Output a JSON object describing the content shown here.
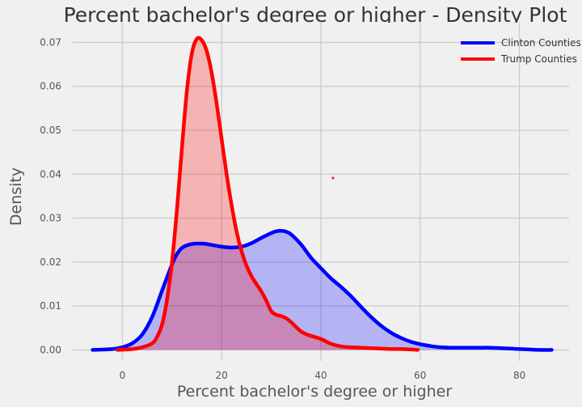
{
  "chart_data": {
    "type": "area",
    "title": "Percent bachelor's degree or higher - Density Plot",
    "xlabel": "Percent bachelor's degree or higher",
    "ylabel": "Density",
    "xlim": [
      -10,
      90
    ],
    "ylim": [
      -0.0025,
      0.0745
    ],
    "x_ticks": [
      0,
      20,
      40,
      60,
      80
    ],
    "y_ticks": [
      0.0,
      0.01,
      0.02,
      0.03,
      0.04,
      0.05,
      0.06,
      0.07
    ],
    "x_tick_labels": [
      "0",
      "20",
      "40",
      "60",
      "80"
    ],
    "y_tick_labels": [
      "0.00",
      "0.01",
      "0.02",
      "0.03",
      "0.04",
      "0.05",
      "0.06",
      "0.07"
    ],
    "grid": true,
    "legend_position": "top-right",
    "series": [
      {
        "name": "Clinton Counties",
        "color": "#0000ff",
        "fill": "rgba(0,0,255,0.25)",
        "x": [
          -6,
          -2,
          0,
          2,
          4,
          6,
          8,
          10,
          11,
          12,
          13,
          14,
          15,
          16,
          17,
          18,
          20,
          22,
          24,
          26,
          28,
          30,
          31,
          32,
          33,
          34,
          36,
          38,
          40,
          42,
          44,
          46,
          48,
          50,
          52,
          54,
          56,
          58,
          60,
          62,
          64,
          66,
          68,
          70,
          72,
          74,
          76,
          78,
          80,
          82,
          84,
          86.5
        ],
        "y": [
          0.0,
          0.0002,
          0.0006,
          0.0015,
          0.0035,
          0.0075,
          0.0135,
          0.0195,
          0.0218,
          0.0232,
          0.0238,
          0.0241,
          0.0242,
          0.0242,
          0.0241,
          0.0239,
          0.0235,
          0.0233,
          0.0235,
          0.0243,
          0.0255,
          0.0266,
          0.027,
          0.0271,
          0.0269,
          0.0263,
          0.024,
          0.021,
          0.0186,
          0.0163,
          0.0144,
          0.0123,
          0.0099,
          0.0076,
          0.0056,
          0.004,
          0.0028,
          0.0019,
          0.0013,
          0.0009,
          0.0006,
          0.0005,
          0.0005,
          0.0005,
          0.0005,
          0.0005,
          0.0004,
          0.0003,
          0.0002,
          0.0001,
          0.0,
          0.0
        ]
      },
      {
        "name": "Trump Counties",
        "color": "#ff0000",
        "fill": "rgba(255,0,0,0.25)",
        "x": [
          -1,
          2,
          4,
          6,
          7,
          8,
          9,
          10,
          11,
          12,
          13,
          14,
          15,
          16,
          17,
          18,
          19,
          20,
          21,
          22,
          23,
          24,
          25,
          26,
          27,
          28,
          29,
          30,
          31,
          32,
          33,
          34,
          35,
          36,
          37,
          38,
          40,
          42,
          44,
          46,
          48,
          50,
          52,
          54,
          56,
          58,
          59.5
        ],
        "y": [
          0.0,
          0.0002,
          0.0006,
          0.0015,
          0.003,
          0.0058,
          0.0115,
          0.02,
          0.032,
          0.046,
          0.059,
          0.0675,
          0.0708,
          0.0705,
          0.068,
          0.063,
          0.056,
          0.048,
          0.04,
          0.033,
          0.027,
          0.0225,
          0.0192,
          0.0168,
          0.015,
          0.0133,
          0.0112,
          0.0088,
          0.008,
          0.0077,
          0.0072,
          0.0063,
          0.0052,
          0.0042,
          0.0036,
          0.0032,
          0.0025,
          0.0014,
          0.0008,
          0.0006,
          0.0005,
          0.0004,
          0.0003,
          0.0002,
          0.0002,
          0.0001,
          0.0
        ]
      }
    ]
  }
}
